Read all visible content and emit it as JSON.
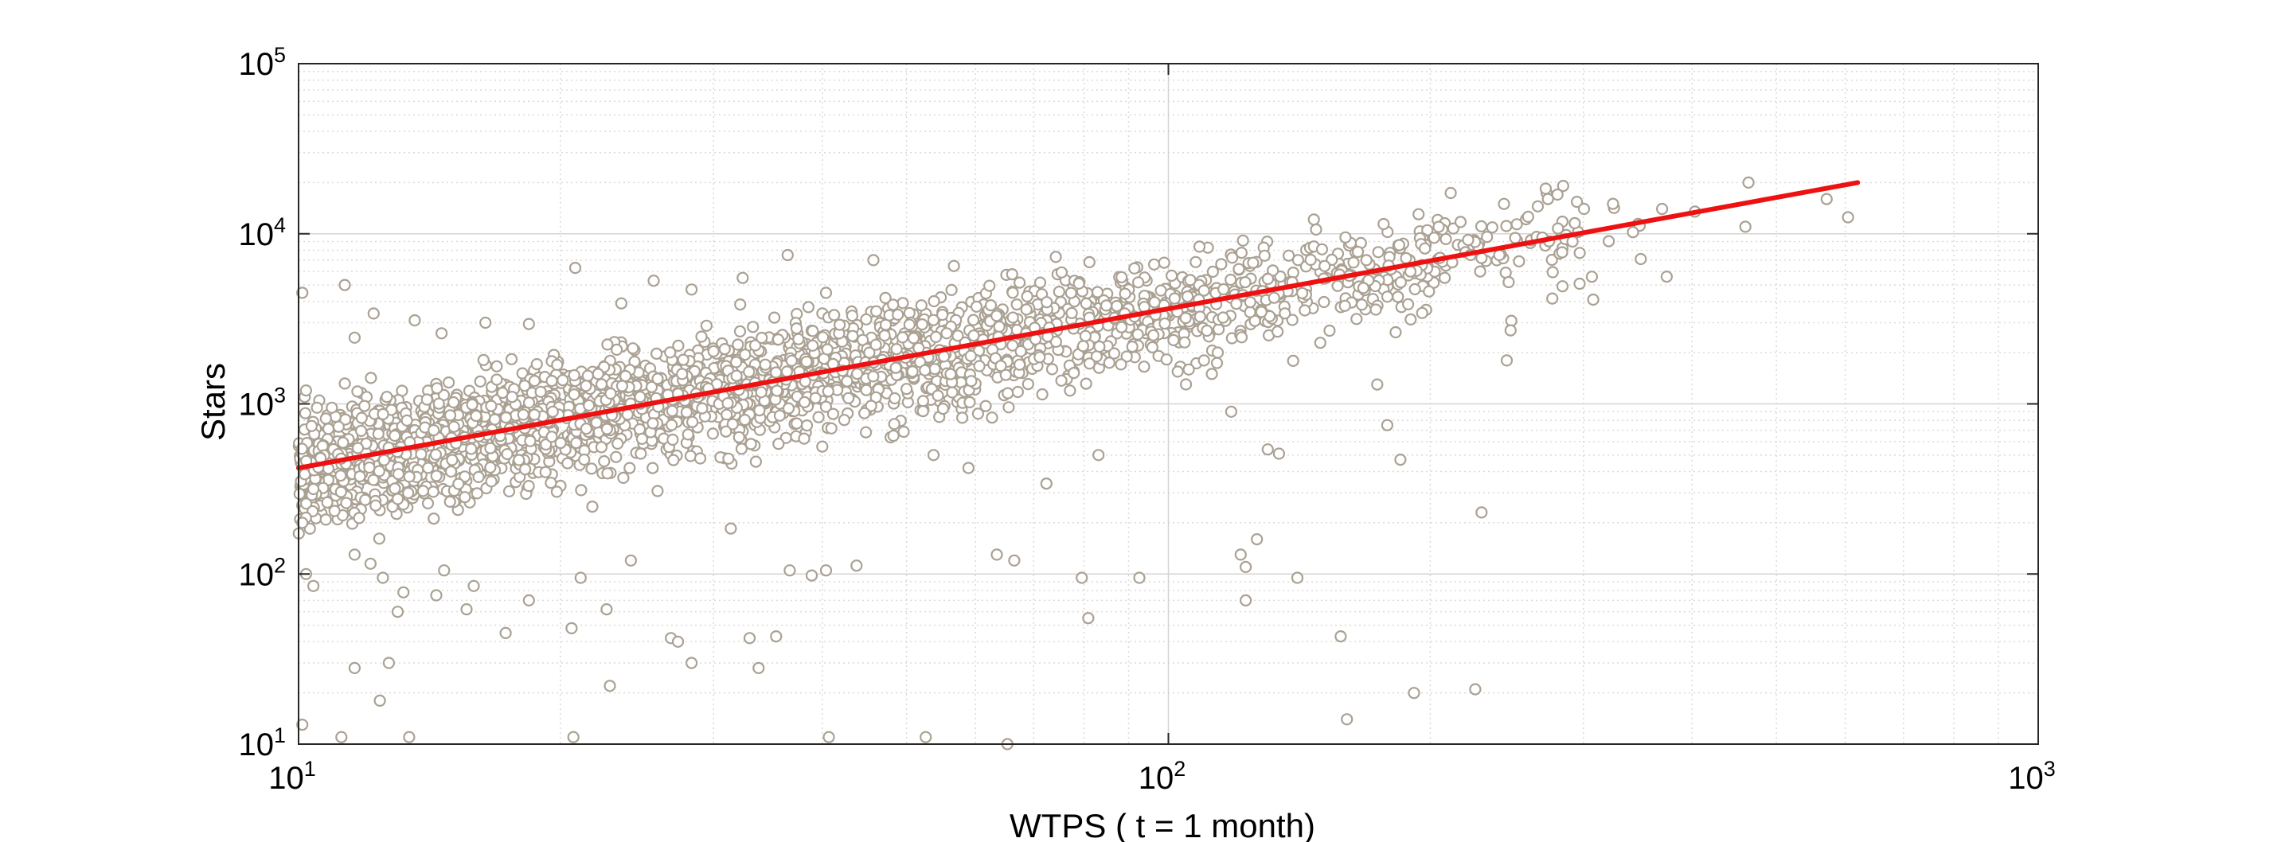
{
  "chart_data": {
    "type": "scatter",
    "xlabel": "WTPS ( t = 1 month)",
    "ylabel": "Stars",
    "xscale": "log",
    "yscale": "log",
    "xlim": [
      10,
      1000
    ],
    "ylim": [
      10,
      100000
    ],
    "x_ticks": [
      {
        "base": "10",
        "exp": "1",
        "value": 10
      },
      {
        "base": "10",
        "exp": "2",
        "value": 100
      },
      {
        "base": "10",
        "exp": "3",
        "value": 1000
      }
    ],
    "y_ticks": [
      {
        "base": "10",
        "exp": "1",
        "value": 10
      },
      {
        "base": "10",
        "exp": "2",
        "value": 100
      },
      {
        "base": "10",
        "exp": "3",
        "value": 1000
      },
      {
        "base": "10",
        "exp": "4",
        "value": 10000
      },
      {
        "base": "10",
        "exp": "5",
        "value": 100000
      }
    ],
    "grid": true,
    "legend": "none",
    "marker_color": "#aaa193",
    "fit_color": "#ee1111",
    "fit_line": {
      "x": [
        10,
        620
      ],
      "y": [
        420,
        20000
      ]
    },
    "scatter_trend": {
      "intercept_x": 10,
      "intercept_y": 420,
      "slope": 0.935,
      "x_range": [
        10,
        360
      ],
      "point_count": 2600
    },
    "points": [
      [
        10.1,
        4500
      ],
      [
        10.2,
        1200
      ],
      [
        10.5,
        950
      ],
      [
        11.3,
        5000
      ],
      [
        11.6,
        2450
      ],
      [
        12.2,
        3400
      ],
      [
        13.6,
        3100
      ],
      [
        14.6,
        2600
      ],
      [
        16.4,
        3000
      ],
      [
        18.4,
        2950
      ],
      [
        20.8,
        6300
      ],
      [
        23.5,
        3900
      ],
      [
        25.6,
        5300
      ],
      [
        28.3,
        4700
      ],
      [
        32.4,
        5500
      ],
      [
        36.5,
        7500
      ],
      [
        40.4,
        4500
      ],
      [
        45.8,
        7000
      ],
      [
        10.1,
        200
      ],
      [
        10.2,
        100
      ],
      [
        10.4,
        85
      ],
      [
        11.6,
        130
      ],
      [
        12.1,
        115
      ],
      [
        12.5,
        95
      ],
      [
        13.2,
        78
      ],
      [
        13.0,
        60
      ],
      [
        14.4,
        75
      ],
      [
        14.7,
        105
      ],
      [
        15.6,
        62
      ],
      [
        15.9,
        85
      ],
      [
        17.3,
        45
      ],
      [
        18.4,
        70
      ],
      [
        20.6,
        48
      ],
      [
        21.1,
        95
      ],
      [
        22.6,
        62
      ],
      [
        24.1,
        120
      ],
      [
        26.8,
        42
      ],
      [
        27.3,
        40
      ],
      [
        28.3,
        30
      ],
      [
        31.4,
        185
      ],
      [
        33.0,
        42
      ],
      [
        35.4,
        43
      ],
      [
        36.7,
        105
      ],
      [
        38.9,
        98
      ],
      [
        40.4,
        105
      ],
      [
        43.8,
        112
      ],
      [
        48.3,
        650
      ],
      [
        53.7,
        500
      ],
      [
        58.9,
        420
      ],
      [
        63.5,
        130
      ],
      [
        66.5,
        120
      ],
      [
        72.4,
        340
      ],
      [
        79.5,
        95
      ],
      [
        80.9,
        55
      ],
      [
        83.1,
        500
      ],
      [
        92.6,
        95
      ],
      [
        104.4,
        2300
      ],
      [
        112.2,
        1500
      ],
      [
        118.1,
        900
      ],
      [
        121.1,
        130
      ],
      [
        122.7,
        110
      ],
      [
        126.4,
        160
      ],
      [
        130.1,
        540
      ],
      [
        134.0,
        510
      ],
      [
        140.7,
        95
      ],
      [
        157.8,
        43
      ],
      [
        173.8,
        1300
      ],
      [
        178.5,
        750
      ],
      [
        184.8,
        470
      ],
      [
        191.6,
        20
      ],
      [
        229.1,
        230
      ],
      [
        225.3,
        21
      ],
      [
        244.9,
        1800
      ],
      [
        307.9,
        4100
      ],
      [
        12.7,
        30
      ],
      [
        11.6,
        28
      ],
      [
        12.4,
        18
      ],
      [
        10.1,
        13
      ],
      [
        11.2,
        11
      ],
      [
        13.4,
        11
      ],
      [
        20.7,
        11
      ],
      [
        22.8,
        22
      ],
      [
        33.8,
        28
      ],
      [
        40.7,
        11
      ],
      [
        52.6,
        11
      ],
      [
        65.3,
        10
      ],
      [
        122.7,
        70
      ],
      [
        160.4,
        14
      ],
      [
        168.9,
        7000
      ],
      [
        179.1,
        6500
      ],
      [
        349.2,
        7100
      ],
      [
        374.0,
        5600
      ],
      [
        369.5,
        14000
      ],
      [
        403.0,
        13500
      ],
      [
        460.6,
        11000
      ],
      [
        464.4,
        20000
      ],
      [
        571.2,
        16000
      ],
      [
        604.4,
        12500
      ],
      [
        280.1,
        17000
      ],
      [
        273.1,
        16000
      ],
      [
        300.5,
        14000
      ],
      [
        324.4,
        15000
      ],
      [
        269.1,
        9500
      ],
      [
        240.1,
        7500
      ],
      [
        212.0,
        6800
      ],
      [
        197.2,
        8200
      ],
      [
        189.8,
        6000
      ],
      [
        174.3,
        7800
      ],
      [
        150.2,
        8100
      ],
      [
        138.8,
        5200
      ],
      [
        120.5,
        6200
      ],
      [
        108.4,
        4100
      ],
      [
        96.3,
        6600
      ],
      [
        89.1,
        3400
      ],
      [
        78.9,
        5100
      ],
      [
        70.2,
        2800
      ],
      [
        62.5,
        3800
      ],
      [
        55.6,
        2600
      ],
      [
        48.7,
        2100
      ],
      [
        43.3,
        3300
      ],
      [
        39.0,
        2200
      ],
      [
        34.4,
        1700
      ],
      [
        30.9,
        2100
      ],
      [
        27.6,
        1500
      ],
      [
        24.7,
        1100
      ],
      [
        22.1,
        1500
      ],
      [
        19.6,
        900
      ],
      [
        17.6,
        1100
      ],
      [
        16.0,
        850
      ],
      [
        14.3,
        700
      ],
      [
        12.9,
        650
      ],
      [
        11.7,
        550
      ],
      [
        10.6,
        480
      ]
    ]
  }
}
